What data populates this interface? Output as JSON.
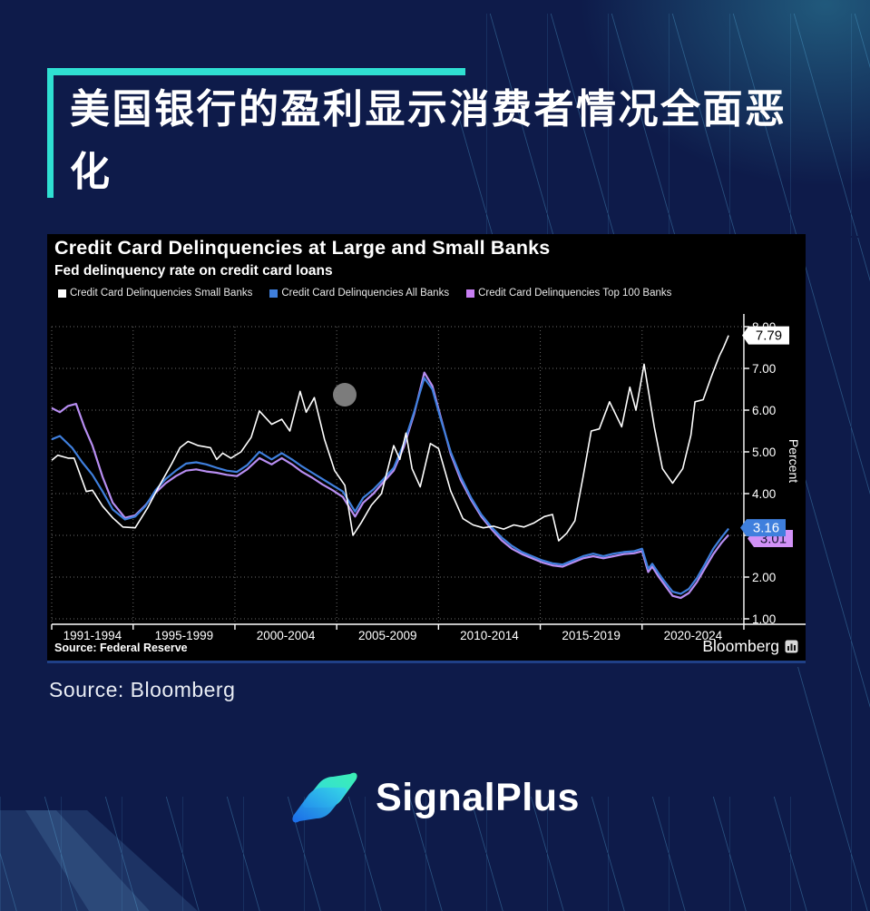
{
  "page": {
    "background": "#0e1b4a",
    "accent_teal": "#2fe0d2"
  },
  "headline": {
    "text": "美国银行的盈利显示消费者情况全面恶化"
  },
  "chart": {
    "title": "Credit Card Delinquencies at Large and Small Banks",
    "subtitle": "Fed delinquency rate on credit card loans",
    "source_note": "Source: Federal Reserve",
    "brand": "Bloomberg",
    "legend": [
      {
        "label": "Credit Card Delinquencies Small Banks",
        "color": "#ffffff"
      },
      {
        "label": "Credit Card Delinquencies All Banks",
        "color": "#3f7fdd"
      },
      {
        "label": "Credit Card Delinquencies Top 100 Banks",
        "color": "#c77ef2"
      }
    ]
  },
  "chart_data": {
    "type": "line",
    "title": "Credit Card Delinquencies at Large and Small Banks",
    "subtitle": "Fed delinquency rate on credit card loans",
    "ylabel": "Percent",
    "ylim": [
      1,
      8
    ],
    "xlim": [
      1991,
      2025
    ],
    "grid": true,
    "yticks": [
      8,
      7,
      6,
      5,
      4,
      3,
      2,
      1
    ],
    "x_segments": [
      {
        "label": "1991-1994",
        "start": 1991,
        "end": 1995
      },
      {
        "label": "1995-1999",
        "start": 1995,
        "end": 2000
      },
      {
        "label": "2000-2004",
        "start": 2000,
        "end": 2005
      },
      {
        "label": "2005-2009",
        "start": 2005,
        "end": 2010
      },
      {
        "label": "2010-2014",
        "start": 2010,
        "end": 2015
      },
      {
        "label": "2015-2019",
        "start": 2015,
        "end": 2020
      },
      {
        "label": "2020-2024",
        "start": 2020,
        "end": 2025
      }
    ],
    "series": [
      {
        "name": "Credit Card Delinquencies Top 100 Banks",
        "color": "#b88ef2",
        "width": 2.2,
        "points": [
          [
            1991.0,
            6.05
          ],
          [
            1991.4,
            5.95
          ],
          [
            1991.8,
            6.1
          ],
          [
            1992.2,
            6.15
          ],
          [
            1992.6,
            5.6
          ],
          [
            1993.0,
            5.15
          ],
          [
            1993.5,
            4.4
          ],
          [
            1994.0,
            3.78
          ],
          [
            1994.6,
            3.42
          ],
          [
            1995.1,
            3.48
          ],
          [
            1995.6,
            3.72
          ],
          [
            1996.1,
            4.02
          ],
          [
            1996.6,
            4.25
          ],
          [
            1997.1,
            4.42
          ],
          [
            1997.6,
            4.55
          ],
          [
            1998.1,
            4.58
          ],
          [
            1998.6,
            4.53
          ],
          [
            1999.1,
            4.5
          ],
          [
            1999.6,
            4.45
          ],
          [
            2000.1,
            4.42
          ],
          [
            2000.6,
            4.58
          ],
          [
            2001.2,
            4.85
          ],
          [
            2001.8,
            4.7
          ],
          [
            2002.3,
            4.85
          ],
          [
            2002.8,
            4.7
          ],
          [
            2003.3,
            4.52
          ],
          [
            2003.8,
            4.38
          ],
          [
            2004.3,
            4.22
          ],
          [
            2004.8,
            4.08
          ],
          [
            2005.3,
            3.92
          ],
          [
            2005.9,
            3.45
          ],
          [
            2006.3,
            3.78
          ],
          [
            2006.8,
            4.0
          ],
          [
            2007.3,
            4.28
          ],
          [
            2007.8,
            4.55
          ],
          [
            2008.3,
            5.12
          ],
          [
            2008.8,
            5.9
          ],
          [
            2009.3,
            6.9
          ],
          [
            2009.7,
            6.58
          ],
          [
            2010.1,
            5.85
          ],
          [
            2010.6,
            4.95
          ],
          [
            2011.1,
            4.32
          ],
          [
            2011.6,
            3.85
          ],
          [
            2012.1,
            3.45
          ],
          [
            2012.6,
            3.15
          ],
          [
            2013.1,
            2.88
          ],
          [
            2013.6,
            2.68
          ],
          [
            2014.1,
            2.55
          ],
          [
            2014.6,
            2.45
          ],
          [
            2015.1,
            2.35
          ],
          [
            2015.6,
            2.28
          ],
          [
            2016.1,
            2.25
          ],
          [
            2016.6,
            2.35
          ],
          [
            2017.1,
            2.45
          ],
          [
            2017.6,
            2.5
          ],
          [
            2018.1,
            2.45
          ],
          [
            2018.6,
            2.5
          ],
          [
            2019.1,
            2.55
          ],
          [
            2019.6,
            2.57
          ],
          [
            2020.0,
            2.62
          ],
          [
            2020.3,
            2.12
          ],
          [
            2020.5,
            2.25
          ],
          [
            2020.8,
            2.02
          ],
          [
            2021.1,
            1.82
          ],
          [
            2021.5,
            1.55
          ],
          [
            2021.9,
            1.5
          ],
          [
            2022.3,
            1.62
          ],
          [
            2022.7,
            1.88
          ],
          [
            2023.1,
            2.22
          ],
          [
            2023.5,
            2.55
          ],
          [
            2023.9,
            2.82
          ],
          [
            2024.25,
            3.01
          ]
        ]
      },
      {
        "name": "Credit Card Delinquencies All Banks",
        "color": "#3f7fdd",
        "width": 2.2,
        "points": [
          [
            1991.0,
            5.3
          ],
          [
            1991.4,
            5.38
          ],
          [
            1992.0,
            5.1
          ],
          [
            1992.5,
            4.75
          ],
          [
            1993.0,
            4.45
          ],
          [
            1993.5,
            4.05
          ],
          [
            1994.0,
            3.62
          ],
          [
            1994.6,
            3.38
          ],
          [
            1995.1,
            3.45
          ],
          [
            1995.6,
            3.7
          ],
          [
            1996.1,
            4.08
          ],
          [
            1996.6,
            4.35
          ],
          [
            1997.1,
            4.55
          ],
          [
            1997.6,
            4.72
          ],
          [
            1998.1,
            4.75
          ],
          [
            1998.6,
            4.7
          ],
          [
            1999.1,
            4.62
          ],
          [
            1999.6,
            4.55
          ],
          [
            2000.1,
            4.52
          ],
          [
            2000.6,
            4.68
          ],
          [
            2001.2,
            5.0
          ],
          [
            2001.8,
            4.82
          ],
          [
            2002.3,
            4.97
          ],
          [
            2002.8,
            4.82
          ],
          [
            2003.3,
            4.65
          ],
          [
            2003.8,
            4.5
          ],
          [
            2004.3,
            4.35
          ],
          [
            2004.8,
            4.2
          ],
          [
            2005.3,
            4.05
          ],
          [
            2005.9,
            3.57
          ],
          [
            2006.3,
            3.9
          ],
          [
            2006.8,
            4.1
          ],
          [
            2007.3,
            4.35
          ],
          [
            2007.8,
            4.62
          ],
          [
            2008.3,
            5.2
          ],
          [
            2008.8,
            5.95
          ],
          [
            2009.3,
            6.77
          ],
          [
            2009.7,
            6.5
          ],
          [
            2010.1,
            5.8
          ],
          [
            2010.6,
            5.0
          ],
          [
            2011.1,
            4.4
          ],
          [
            2011.6,
            3.9
          ],
          [
            2012.1,
            3.5
          ],
          [
            2012.6,
            3.2
          ],
          [
            2013.1,
            2.95
          ],
          [
            2013.6,
            2.75
          ],
          [
            2014.1,
            2.6
          ],
          [
            2014.6,
            2.5
          ],
          [
            2015.1,
            2.4
          ],
          [
            2015.6,
            2.33
          ],
          [
            2016.1,
            2.3
          ],
          [
            2016.6,
            2.4
          ],
          [
            2017.1,
            2.5
          ],
          [
            2017.6,
            2.56
          ],
          [
            2018.1,
            2.5
          ],
          [
            2018.6,
            2.56
          ],
          [
            2019.1,
            2.6
          ],
          [
            2019.6,
            2.62
          ],
          [
            2020.0,
            2.68
          ],
          [
            2020.3,
            2.2
          ],
          [
            2020.5,
            2.32
          ],
          [
            2020.8,
            2.1
          ],
          [
            2021.1,
            1.9
          ],
          [
            2021.5,
            1.65
          ],
          [
            2021.9,
            1.6
          ],
          [
            2022.3,
            1.72
          ],
          [
            2022.7,
            1.98
          ],
          [
            2023.1,
            2.32
          ],
          [
            2023.5,
            2.68
          ],
          [
            2023.9,
            2.95
          ],
          [
            2024.25,
            3.16
          ]
        ]
      },
      {
        "name": "Credit Card Delinquencies Small Banks",
        "color": "#ffffff",
        "width": 1.6,
        "points": [
          [
            1991.0,
            4.8
          ],
          [
            1991.3,
            4.92
          ],
          [
            1991.8,
            4.85
          ],
          [
            1992.1,
            4.85
          ],
          [
            1992.7,
            4.05
          ],
          [
            1993.0,
            4.08
          ],
          [
            1993.5,
            3.7
          ],
          [
            1994.0,
            3.42
          ],
          [
            1994.5,
            3.2
          ],
          [
            1995.1,
            3.18
          ],
          [
            1995.7,
            3.65
          ],
          [
            1996.3,
            4.2
          ],
          [
            1996.9,
            4.72
          ],
          [
            1997.3,
            5.1
          ],
          [
            1997.7,
            5.25
          ],
          [
            1998.2,
            5.15
          ],
          [
            1998.8,
            5.1
          ],
          [
            1999.1,
            4.82
          ],
          [
            1999.4,
            4.97
          ],
          [
            1999.8,
            4.85
          ],
          [
            2000.3,
            5.0
          ],
          [
            2000.8,
            5.35
          ],
          [
            2001.2,
            5.98
          ],
          [
            2001.8,
            5.66
          ],
          [
            2002.3,
            5.78
          ],
          [
            2002.7,
            5.5
          ],
          [
            2003.2,
            6.45
          ],
          [
            2003.5,
            5.95
          ],
          [
            2003.9,
            6.3
          ],
          [
            2004.4,
            5.3
          ],
          [
            2004.9,
            4.55
          ],
          [
            2005.4,
            4.2
          ],
          [
            2005.8,
            3.0
          ],
          [
            2006.2,
            3.3
          ],
          [
            2006.7,
            3.72
          ],
          [
            2007.2,
            4.0
          ],
          [
            2007.8,
            5.15
          ],
          [
            2008.1,
            4.82
          ],
          [
            2008.4,
            5.45
          ],
          [
            2008.7,
            4.6
          ],
          [
            2009.1,
            4.16
          ],
          [
            2009.6,
            5.2
          ],
          [
            2010.0,
            5.08
          ],
          [
            2010.6,
            4.06
          ],
          [
            2011.2,
            3.4
          ],
          [
            2011.7,
            3.25
          ],
          [
            2012.2,
            3.18
          ],
          [
            2012.7,
            3.22
          ],
          [
            2013.2,
            3.15
          ],
          [
            2013.7,
            3.25
          ],
          [
            2014.2,
            3.2
          ],
          [
            2014.7,
            3.3
          ],
          [
            2015.2,
            3.45
          ],
          [
            2015.6,
            3.5
          ],
          [
            2015.9,
            2.87
          ],
          [
            2016.3,
            3.05
          ],
          [
            2016.7,
            3.35
          ],
          [
            2017.1,
            4.4
          ],
          [
            2017.5,
            5.5
          ],
          [
            2017.9,
            5.55
          ],
          [
            2018.4,
            6.2
          ],
          [
            2019.0,
            5.6
          ],
          [
            2019.4,
            6.55
          ],
          [
            2019.7,
            6.0
          ],
          [
            2020.1,
            7.1
          ],
          [
            2020.6,
            5.6
          ],
          [
            2021.0,
            4.6
          ],
          [
            2021.5,
            4.25
          ],
          [
            2022.0,
            4.6
          ],
          [
            2022.4,
            5.4
          ],
          [
            2022.6,
            6.2
          ],
          [
            2023.0,
            6.25
          ],
          [
            2023.4,
            6.8
          ],
          [
            2023.8,
            7.3
          ],
          [
            2024.0,
            7.5
          ],
          [
            2024.25,
            7.79
          ]
        ]
      }
    ],
    "end_labels": [
      {
        "text": "7.79",
        "value": 7.79,
        "bg": "#ffffff",
        "fg": "#000000"
      },
      {
        "text": "3.01",
        "value": 3.01,
        "bg": "#d292f7",
        "fg": "#141432"
      },
      {
        "text": "3.16",
        "value": 3.16,
        "bg": "#3f7fdd",
        "fg": "#ffffff"
      }
    ],
    "legend_position": "top"
  },
  "source_caption": "Source: Bloomberg",
  "brand": {
    "name": "SignalPlus"
  }
}
